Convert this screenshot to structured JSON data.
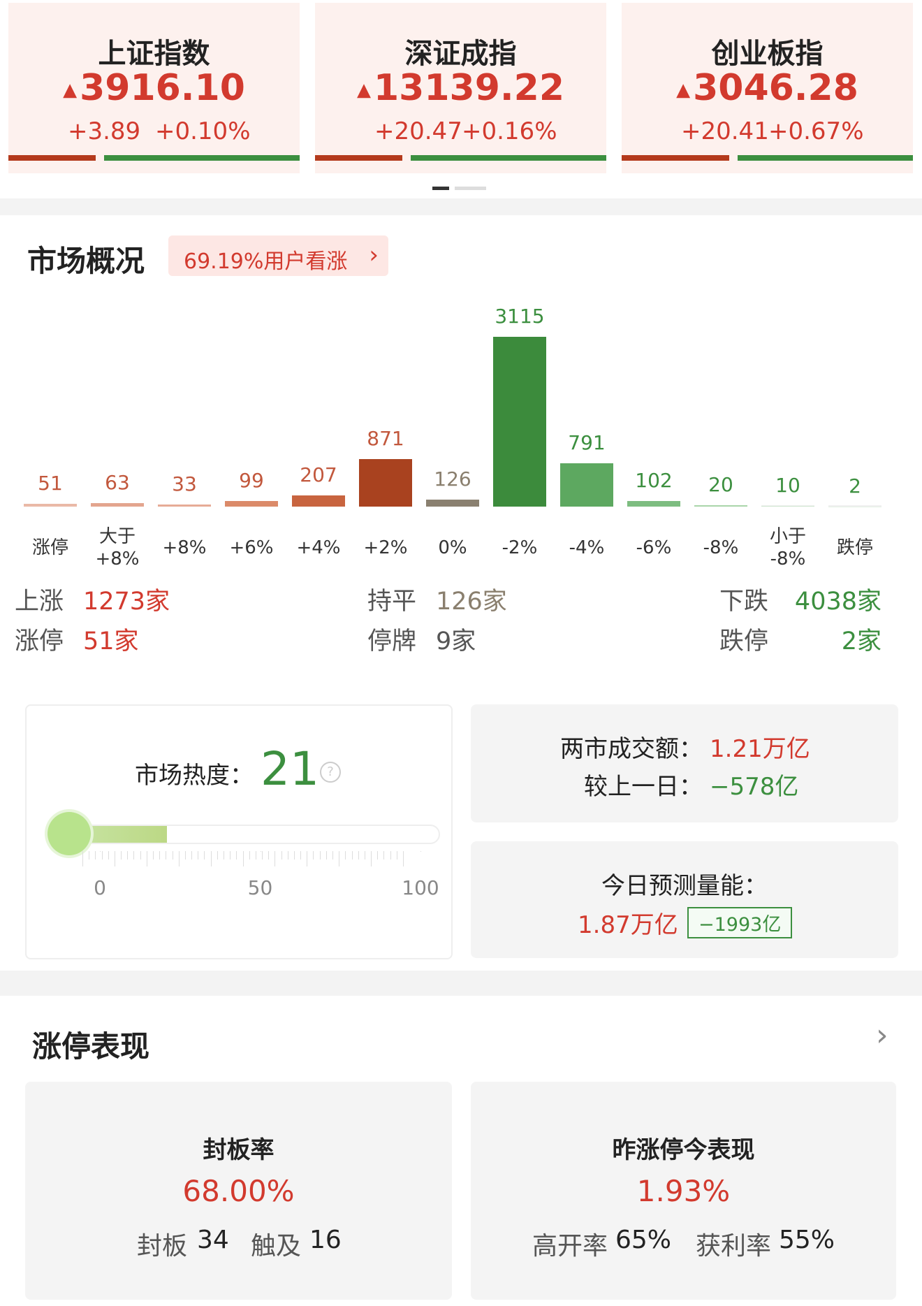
{
  "indices": [
    {
      "name": "上证指数",
      "value": "3916.10",
      "change": "+3.89",
      "pct": "+0.10%"
    },
    {
      "name": "深证成指",
      "value": "13139.22",
      "change": "+20.47",
      "pct": "+0.16%"
    },
    {
      "name": "创业板指",
      "value": "3046.28",
      "change": "+20.41",
      "pct": "+0.67%"
    }
  ],
  "market_overview": {
    "title": "市场概况",
    "badge": "69.19%用户看涨",
    "distribution": {
      "categories": [
        "涨停",
        "大于\n+8%",
        "+8%",
        "+6%",
        "+4%",
        "+2%",
        "0%",
        "-2%",
        "-4%",
        "-6%",
        "-8%",
        "小于\n-8%",
        "跌停"
      ],
      "values": [
        51,
        63,
        33,
        99,
        207,
        871,
        126,
        3115,
        791,
        102,
        20,
        10,
        2
      ],
      "colors": [
        "#eab9a7",
        "#e3a58e",
        "#e6ab96",
        "#db8a69",
        "#c8643f",
        "#a9421f",
        "#8a8070",
        "#3c8b3c",
        "#5da860",
        "#7dbd80",
        "#a9d5a9",
        "#cfe6cf",
        "#e4f1e4"
      ]
    },
    "stats": {
      "up_label": "上涨",
      "up": "1273家",
      "flat_label": "持平",
      "flat": "126家",
      "down_label": "下跌",
      "down": "4038家",
      "limit_up_label": "涨停",
      "limit_up": "51家",
      "suspended_label": "停牌",
      "suspended": "9家",
      "limit_down_label": "跌停",
      "limit_down": "2家"
    }
  },
  "heat": {
    "label": "市场热度：",
    "value": 21,
    "scale": [
      0,
      50,
      100
    ]
  },
  "turnover": {
    "label": "两市成交额：",
    "value": "1.21万亿",
    "compare_label": "较上一日：",
    "compare": "−578亿"
  },
  "forecast": {
    "label": "今日预测量能：",
    "value": "1.87万亿",
    "delta": "−1993亿"
  },
  "limit_up_performance": {
    "title": "涨停表现",
    "seal": {
      "title": "封板率",
      "value": "68.00%",
      "sealed_label": "封板",
      "sealed": 34,
      "touched_label": "触及",
      "touched": 16
    },
    "yesterday": {
      "title": "昨涨停今表现",
      "value": "1.93%",
      "high_open_label": "高开率",
      "high_open": "65%",
      "profit_label": "获利率",
      "profit": "55%"
    }
  }
}
